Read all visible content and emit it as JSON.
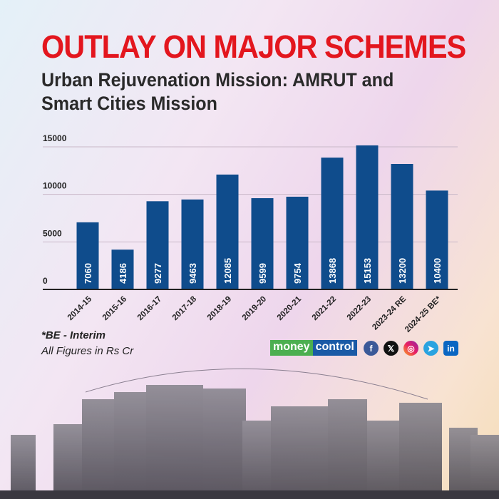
{
  "header": {
    "title": "OUTLAY ON MAJOR SCHEMES",
    "subtitle": "Urban Rejuvenation Mission: AMRUT and Smart Cities Mission"
  },
  "footer": {
    "note1": "*BE - Interim",
    "note2": "All Figures in Rs Cr",
    "brand_part1": "money",
    "brand_part2": "control",
    "social_icons": [
      "facebook-icon",
      "x-icon",
      "instagram-icon",
      "telegram-icon",
      "linkedin-icon"
    ]
  },
  "colors": {
    "bar": "#0f4c8c",
    "title": "#e3161e",
    "brand_green": "#4caf50",
    "brand_blue": "#1a5aa6"
  },
  "chart_data": {
    "type": "bar",
    "title": "",
    "xlabel": "",
    "ylabel": "",
    "ylim": [
      0,
      15000
    ],
    "yticks": [
      0,
      5000,
      10000,
      15000
    ],
    "grid": true,
    "categories": [
      "2014-15",
      "2015-16",
      "2016-17",
      "2017-18",
      "2018-19",
      "2019-20",
      "2020-21",
      "2021-22",
      "2022-23",
      "2023-24 RE",
      "2024-25 BE*"
    ],
    "values": [
      7060,
      4186,
      9277,
      9463,
      12085,
      9599,
      9754,
      13868,
      15153,
      13200,
      10400
    ]
  }
}
